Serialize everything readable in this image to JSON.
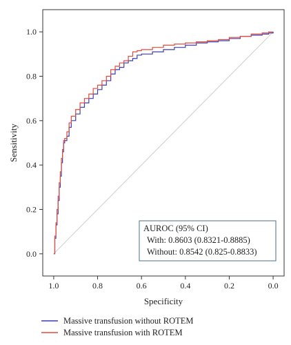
{
  "chart_data": {
    "type": "line",
    "title": "",
    "xlabel": "Specificity",
    "ylabel": "Sensitivity",
    "x_reversed": true,
    "xlim": [
      1.05,
      -0.05
    ],
    "ylim": [
      -0.1,
      1.1
    ],
    "x_ticks": [
      1.0,
      0.8,
      0.6,
      0.4,
      0.2,
      0.0
    ],
    "x_tick_labels": [
      "1.0",
      "0.8",
      "0.6",
      "0.4",
      "0.2",
      "0.0"
    ],
    "y_ticks": [
      0.0,
      0.2,
      0.4,
      0.6,
      0.8,
      1.0
    ],
    "y_tick_labels": [
      "0.0",
      "0.2",
      "0.4",
      "0.6",
      "0.8",
      "1.0"
    ],
    "grid": false,
    "reference_line": {
      "from": [
        1.0,
        0.0
      ],
      "to": [
        0.0,
        1.0
      ],
      "color": "#cccccc"
    },
    "series": [
      {
        "name": "Massive transfusion without ROTEM",
        "color": "#3b3bb5",
        "x": [
          1.0,
          0.995,
          0.99,
          0.985,
          0.98,
          0.975,
          0.97,
          0.965,
          0.96,
          0.955,
          0.95,
          0.94,
          0.93,
          0.92,
          0.9,
          0.88,
          0.86,
          0.84,
          0.82,
          0.8,
          0.78,
          0.76,
          0.74,
          0.72,
          0.7,
          0.68,
          0.66,
          0.64,
          0.62,
          0.6,
          0.55,
          0.5,
          0.45,
          0.4,
          0.35,
          0.3,
          0.25,
          0.2,
          0.15,
          0.1,
          0.05,
          0.02,
          0.0
        ],
        "y": [
          0.0,
          0.07,
          0.13,
          0.18,
          0.24,
          0.3,
          0.35,
          0.41,
          0.46,
          0.5,
          0.51,
          0.53,
          0.57,
          0.6,
          0.63,
          0.66,
          0.68,
          0.7,
          0.72,
          0.74,
          0.76,
          0.78,
          0.81,
          0.83,
          0.84,
          0.86,
          0.87,
          0.88,
          0.895,
          0.9,
          0.91,
          0.92,
          0.93,
          0.94,
          0.95,
          0.955,
          0.96,
          0.97,
          0.98,
          0.985,
          0.99,
          0.995,
          1.0
        ]
      },
      {
        "name": "Massive transfusion with ROTEM",
        "color": "#e04b3a",
        "x": [
          1.0,
          0.995,
          0.99,
          0.985,
          0.98,
          0.975,
          0.97,
          0.965,
          0.96,
          0.955,
          0.95,
          0.94,
          0.93,
          0.92,
          0.9,
          0.88,
          0.86,
          0.84,
          0.82,
          0.8,
          0.78,
          0.76,
          0.74,
          0.72,
          0.7,
          0.68,
          0.66,
          0.64,
          0.62,
          0.6,
          0.55,
          0.5,
          0.45,
          0.4,
          0.35,
          0.3,
          0.25,
          0.2,
          0.15,
          0.1,
          0.05,
          0.02,
          0.0
        ],
        "y": [
          0.0,
          0.08,
          0.14,
          0.2,
          0.26,
          0.32,
          0.37,
          0.43,
          0.47,
          0.51,
          0.52,
          0.55,
          0.59,
          0.62,
          0.65,
          0.68,
          0.7,
          0.72,
          0.745,
          0.76,
          0.78,
          0.8,
          0.83,
          0.845,
          0.86,
          0.87,
          0.89,
          0.91,
          0.915,
          0.92,
          0.93,
          0.94,
          0.945,
          0.95,
          0.955,
          0.96,
          0.965,
          0.975,
          0.98,
          0.99,
          0.995,
          1.0,
          1.0
        ]
      }
    ],
    "annotation": {
      "lines": [
        "AUROC (95% CI)",
        "With: 0.8603 (0.8321-0.8885)",
        "Without: 0.8542 (0.825-0.8833)"
      ],
      "border_color": "#4a6f8a"
    },
    "legend_position": "bottom"
  }
}
